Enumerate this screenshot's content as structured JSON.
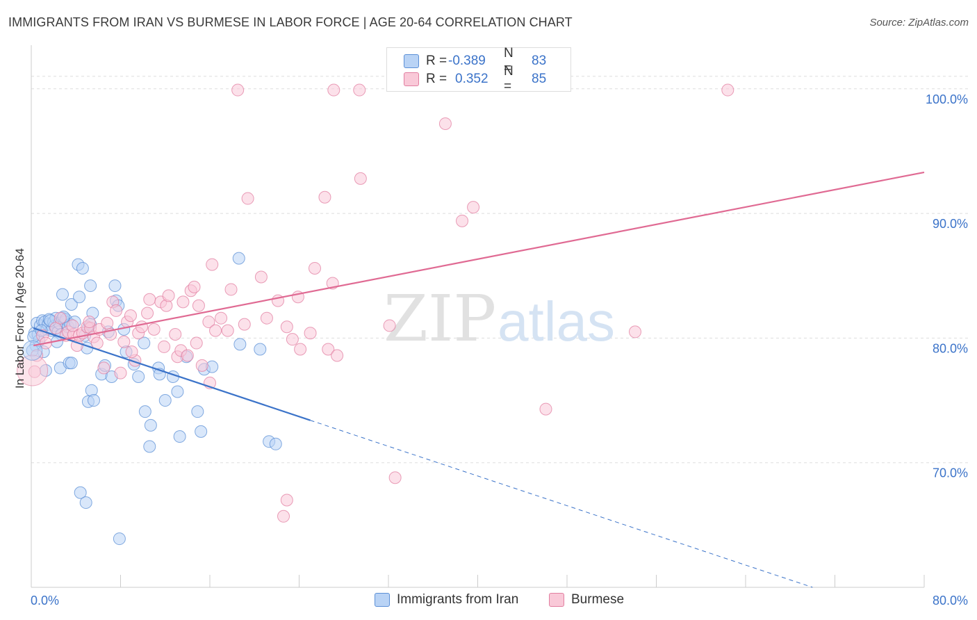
{
  "title": "IMMIGRANTS FROM IRAN VS BURMESE IN LABOR FORCE | AGE 20-64 CORRELATION CHART",
  "source": "Source: ZipAtlas.com",
  "watermark": {
    "zip": "ZIP",
    "atlas": "atlas"
  },
  "legend": {
    "r_label": "R =",
    "n_label": "N =",
    "rows": [
      {
        "r": "-0.389",
        "n": "83",
        "fill": "#b9d3f5",
        "stroke": "#5b8fd6"
      },
      {
        "r": "0.352",
        "n": "85",
        "fill": "#f9c9d8",
        "stroke": "#e27ea0"
      }
    ]
  },
  "chart_data": {
    "type": "scatter",
    "title": "IMMIGRANTS FROM IRAN VS BURMESE IN LABOR FORCE | AGE 20-64 CORRELATION CHART",
    "xlabel": "",
    "ylabel": "In Labor Force | Age 20-64",
    "xlim": [
      0,
      80
    ],
    "ylim": [
      60,
      103.5
    ],
    "x_tick_labels": [
      {
        "value": 0,
        "label": "0.0%"
      },
      {
        "value": 80,
        "label": "80.0%"
      }
    ],
    "y_tick_labels": [
      {
        "value": 70,
        "label": "70.0%"
      },
      {
        "value": 80,
        "label": "80.0%"
      },
      {
        "value": 90,
        "label": "90.0%"
      },
      {
        "value": 100,
        "label": "100.0%"
      }
    ],
    "grid": true,
    "legend_position": "top-center",
    "series": [
      {
        "name": "Immigrants from Iran",
        "color": "#5b8fd6",
        "fill": "#b9d3f5",
        "trend": {
          "x0": 0.2,
          "y0": 80.8,
          "x1": 25,
          "y1": 73.4,
          "dash_to_x": 70,
          "dash_to_y": 60.0
        },
        "points": [
          [
            0.3,
            80.4
          ],
          [
            0.5,
            81.2
          ],
          [
            0.6,
            80.3
          ],
          [
            0.8,
            81.0
          ],
          [
            1.0,
            81.4
          ],
          [
            1.2,
            81.3
          ],
          [
            1.4,
            80.7
          ],
          [
            1.5,
            81.1
          ],
          [
            1.6,
            81.5
          ],
          [
            1.8,
            80.6
          ],
          [
            2.0,
            81.3
          ],
          [
            2.1,
            81.0
          ],
          [
            2.2,
            81.6
          ],
          [
            2.4,
            80.5
          ],
          [
            2.5,
            81.2
          ],
          [
            2.7,
            80.3
          ],
          [
            2.8,
            81.6
          ],
          [
            3.0,
            81.3
          ],
          [
            3.1,
            81.5
          ],
          [
            3.3,
            80.9
          ],
          [
            3.5,
            81.1
          ],
          [
            0.4,
            79.4
          ],
          [
            0.7,
            79.8
          ],
          [
            1.1,
            78.9
          ],
          [
            1.3,
            77.4
          ],
          [
            2.3,
            79.7
          ],
          [
            2.6,
            77.6
          ],
          [
            3.4,
            78.0
          ],
          [
            3.6,
            78.0
          ],
          [
            2.8,
            83.5
          ],
          [
            3.6,
            82.7
          ],
          [
            4.3,
            83.3
          ],
          [
            4.2,
            85.9
          ],
          [
            4.6,
            85.6
          ],
          [
            5.3,
            84.2
          ],
          [
            5.1,
            80.8
          ],
          [
            5.3,
            81.1
          ],
          [
            4.8,
            80.2
          ],
          [
            5.0,
            79.2
          ],
          [
            5.5,
            82.0
          ],
          [
            6.3,
            77.1
          ],
          [
            6.6,
            77.8
          ],
          [
            7.2,
            76.9
          ],
          [
            7.5,
            84.2
          ],
          [
            7.6,
            83.0
          ],
          [
            7.8,
            82.6
          ],
          [
            6.9,
            80.5
          ],
          [
            8.3,
            80.7
          ],
          [
            8.5,
            78.9
          ],
          [
            9.2,
            77.9
          ],
          [
            9.6,
            76.9
          ],
          [
            10.1,
            79.6
          ],
          [
            10.2,
            74.1
          ],
          [
            10.6,
            71.3
          ],
          [
            10.7,
            73.0
          ],
          [
            11.4,
            77.6
          ],
          [
            11.5,
            77.1
          ],
          [
            12.0,
            75.0
          ],
          [
            12.7,
            76.9
          ],
          [
            13.1,
            75.7
          ],
          [
            13.3,
            72.1
          ],
          [
            13.9,
            78.5
          ],
          [
            14.9,
            74.1
          ],
          [
            15.2,
            72.5
          ],
          [
            15.5,
            77.5
          ],
          [
            16.2,
            77.7
          ],
          [
            18.6,
            86.4
          ],
          [
            18.7,
            79.5
          ],
          [
            20.5,
            79.1
          ],
          [
            21.3,
            71.7
          ],
          [
            21.9,
            71.5
          ],
          [
            4.4,
            67.6
          ],
          [
            4.9,
            66.8
          ],
          [
            5.1,
            74.9
          ],
          [
            5.4,
            75.8
          ],
          [
            5.6,
            75.0
          ],
          [
            7.9,
            63.9
          ],
          [
            0.2,
            80.1
          ],
          [
            0.9,
            80.6
          ],
          [
            1.7,
            81.4
          ],
          [
            2.9,
            81.7
          ],
          [
            3.9,
            81.3
          ],
          [
            0.1,
            79.0
          ]
        ]
      },
      {
        "name": "Burmese",
        "color": "#e27ea0",
        "fill": "#f9c9d8",
        "trend": {
          "x0": 0.2,
          "y0": 79.4,
          "x1": 80,
          "y1": 93.3
        },
        "points": [
          [
            0.3,
            77.3
          ],
          [
            1.0,
            80.2
          ],
          [
            1.3,
            79.6
          ],
          [
            2.2,
            80.8
          ],
          [
            2.6,
            81.6
          ],
          [
            3.1,
            80.2
          ],
          [
            3.3,
            80.5
          ],
          [
            3.8,
            80.3
          ],
          [
            4.1,
            79.4
          ],
          [
            4.3,
            80.2
          ],
          [
            4.6,
            80.4
          ],
          [
            5.0,
            80.9
          ],
          [
            5.3,
            80.8
          ],
          [
            5.6,
            80.1
          ],
          [
            5.9,
            79.6
          ],
          [
            6.1,
            80.7
          ],
          [
            6.5,
            77.6
          ],
          [
            6.8,
            81.2
          ],
          [
            7.1,
            80.3
          ],
          [
            7.3,
            82.9
          ],
          [
            7.6,
            82.2
          ],
          [
            8.0,
            77.2
          ],
          [
            8.3,
            79.7
          ],
          [
            8.6,
            81.3
          ],
          [
            8.9,
            81.8
          ],
          [
            9.3,
            78.2
          ],
          [
            9.6,
            80.4
          ],
          [
            9.9,
            80.9
          ],
          [
            10.4,
            82.0
          ],
          [
            10.6,
            83.1
          ],
          [
            11.0,
            80.7
          ],
          [
            11.6,
            82.9
          ],
          [
            11.9,
            79.3
          ],
          [
            12.1,
            82.6
          ],
          [
            12.3,
            83.4
          ],
          [
            13.1,
            78.5
          ],
          [
            13.4,
            79.0
          ],
          [
            13.6,
            82.9
          ],
          [
            14.0,
            78.6
          ],
          [
            14.3,
            83.8
          ],
          [
            14.6,
            84.1
          ],
          [
            15.0,
            82.6
          ],
          [
            15.3,
            77.8
          ],
          [
            15.9,
            81.3
          ],
          [
            16.2,
            85.9
          ],
          [
            16.5,
            80.6
          ],
          [
            17.0,
            81.6
          ],
          [
            17.6,
            80.6
          ],
          [
            17.9,
            83.9
          ],
          [
            19.1,
            81.1
          ],
          [
            19.4,
            91.2
          ],
          [
            20.6,
            84.9
          ],
          [
            21.1,
            81.6
          ],
          [
            22.1,
            83.0
          ],
          [
            22.9,
            80.9
          ],
          [
            23.4,
            79.9
          ],
          [
            23.9,
            83.3
          ],
          [
            24.1,
            79.1
          ],
          [
            25.0,
            80.4
          ],
          [
            25.4,
            85.6
          ],
          [
            26.3,
            91.3
          ],
          [
            26.6,
            79.1
          ],
          [
            27.0,
            84.4
          ],
          [
            27.4,
            78.6
          ],
          [
            29.5,
            92.8
          ],
          [
            32.1,
            81.0
          ],
          [
            32.6,
            68.8
          ],
          [
            37.1,
            97.2
          ],
          [
            38.6,
            89.4
          ],
          [
            39.6,
            90.5
          ],
          [
            46.1,
            74.3
          ],
          [
            54.1,
            80.5
          ],
          [
            18.5,
            99.9
          ],
          [
            27.1,
            99.9
          ],
          [
            29.4,
            99.9
          ],
          [
            62.4,
            99.9
          ],
          [
            22.6,
            65.7
          ],
          [
            22.9,
            67.0
          ],
          [
            12.9,
            80.3
          ],
          [
            9.0,
            78.9
          ],
          [
            5.2,
            81.3
          ],
          [
            3.7,
            81.0
          ],
          [
            14.8,
            79.6
          ],
          [
            16.0,
            76.4
          ],
          [
            0.5,
            78.6
          ]
        ]
      }
    ]
  },
  "bottom_legend": [
    {
      "label": "Immigrants from Iran",
      "fill": "#b9d3f5",
      "stroke": "#5b8fd6"
    },
    {
      "label": "Burmese",
      "fill": "#f9c9d8",
      "stroke": "#e27ea0"
    }
  ]
}
